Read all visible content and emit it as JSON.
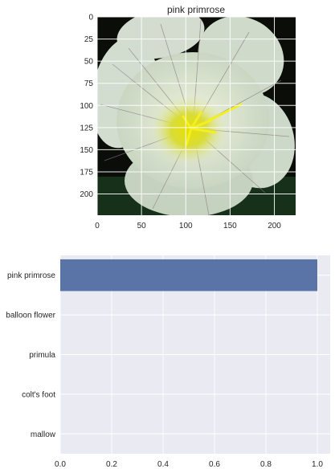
{
  "image_panel": {
    "title": "pink primrose",
    "x_ticks": [
      "0",
      "50",
      "100",
      "150",
      "200"
    ],
    "y_ticks": [
      "0",
      "25",
      "50",
      "75",
      "100",
      "125",
      "150",
      "175",
      "200"
    ]
  },
  "chart_data": {
    "type": "bar",
    "orientation": "horizontal",
    "categories": [
      "pink primrose",
      "balloon flower",
      "primula",
      "colt's foot",
      "mallow"
    ],
    "values": [
      1.0,
      0.0,
      0.0,
      0.0,
      0.0
    ],
    "xlim": [
      0,
      1.05
    ],
    "x_ticks": [
      "0.0",
      "0.2",
      "0.4",
      "0.6",
      "0.8",
      "1.0"
    ],
    "grid": true,
    "bar_color": "#5a74a8",
    "background_color": "#eaeaf2"
  }
}
